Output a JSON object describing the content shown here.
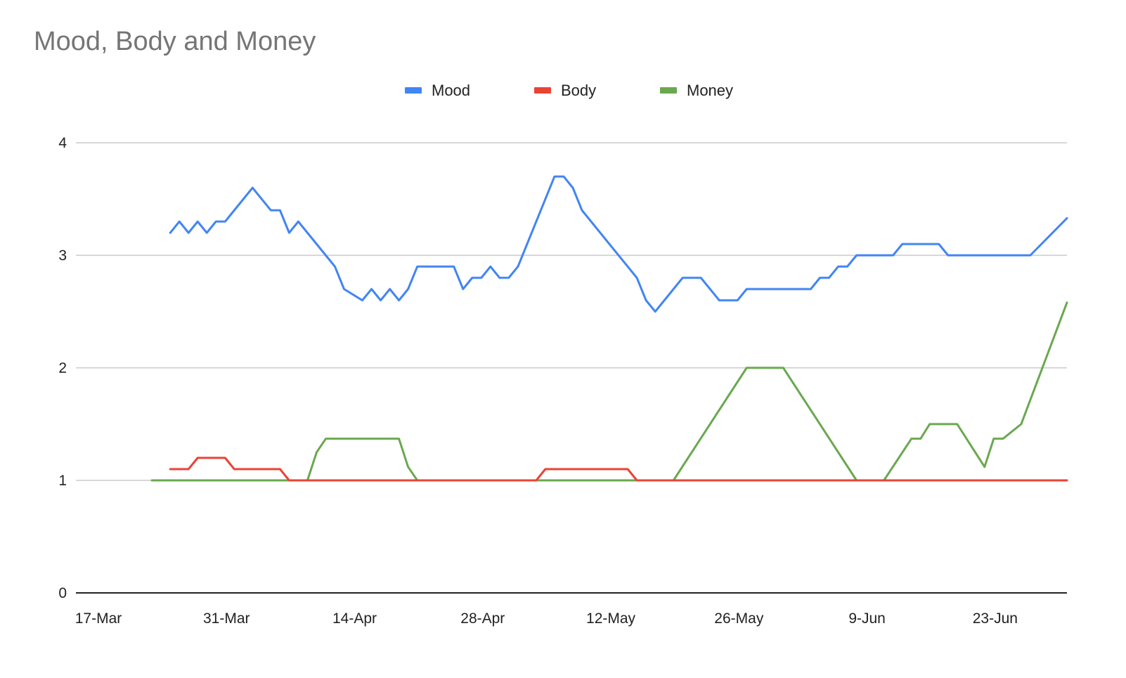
{
  "chart_data": {
    "type": "line",
    "title": "Mood, Body and Money",
    "xlabel": "",
    "ylabel": "",
    "ylim": [
      0,
      4
    ],
    "y_ticks": [
      "0",
      "1",
      "2",
      "3",
      "4"
    ],
    "x_ticks": [
      "17-Mar",
      "31-Mar",
      "14-Apr",
      "28-Apr",
      "12-May",
      "26-May",
      "9-Jun",
      "23-Jun"
    ],
    "x_range": [
      "2020-03-17",
      "2020-07-01"
    ],
    "grid": true,
    "legend_position": "top-center",
    "series": [
      {
        "name": "Mood",
        "color": "#4285f4",
        "points": [
          [
            "2020-03-25",
            3.2
          ],
          [
            "2020-03-26",
            3.3
          ],
          [
            "2020-03-27",
            3.2
          ],
          [
            "2020-03-28",
            3.3
          ],
          [
            "2020-03-29",
            3.2
          ],
          [
            "2020-03-30",
            3.3
          ],
          [
            "2020-03-31",
            3.3
          ],
          [
            "2020-04-03",
            3.6
          ],
          [
            "2020-04-05",
            3.4
          ],
          [
            "2020-04-06",
            3.4
          ],
          [
            "2020-04-07",
            3.2
          ],
          [
            "2020-04-08",
            3.3
          ],
          [
            "2020-04-12",
            2.9
          ],
          [
            "2020-04-13",
            2.7
          ],
          [
            "2020-04-15",
            2.6
          ],
          [
            "2020-04-16",
            2.7
          ],
          [
            "2020-04-17",
            2.6
          ],
          [
            "2020-04-18",
            2.7
          ],
          [
            "2020-04-19",
            2.6
          ],
          [
            "2020-04-20",
            2.7
          ],
          [
            "2020-04-21",
            2.9
          ],
          [
            "2020-04-25",
            2.9
          ],
          [
            "2020-04-26",
            2.7
          ],
          [
            "2020-04-27",
            2.8
          ],
          [
            "2020-04-28",
            2.8
          ],
          [
            "2020-04-29",
            2.9
          ],
          [
            "2020-04-30",
            2.8
          ],
          [
            "2020-05-01",
            2.8
          ],
          [
            "2020-05-02",
            2.9
          ],
          [
            "2020-05-06",
            3.7
          ],
          [
            "2020-05-07",
            3.7
          ],
          [
            "2020-05-08",
            3.6
          ],
          [
            "2020-05-09",
            3.4
          ],
          [
            "2020-05-15",
            2.8
          ],
          [
            "2020-05-16",
            2.6
          ],
          [
            "2020-05-17",
            2.5
          ],
          [
            "2020-05-20",
            2.8
          ],
          [
            "2020-05-22",
            2.8
          ],
          [
            "2020-05-24",
            2.6
          ],
          [
            "2020-05-26",
            2.6
          ],
          [
            "2020-05-27",
            2.7
          ],
          [
            "2020-06-03",
            2.7
          ],
          [
            "2020-06-04",
            2.8
          ],
          [
            "2020-06-05",
            2.8
          ],
          [
            "2020-06-06",
            2.9
          ],
          [
            "2020-06-07",
            2.9
          ],
          [
            "2020-06-08",
            3.0
          ],
          [
            "2020-06-12",
            3.0
          ],
          [
            "2020-06-13",
            3.1
          ],
          [
            "2020-06-17",
            3.1
          ],
          [
            "2020-06-18",
            3.0
          ],
          [
            "2020-06-27",
            3.0
          ],
          [
            "2020-07-01",
            3.33
          ]
        ]
      },
      {
        "name": "Body",
        "color": "#ea4335",
        "points": [
          [
            "2020-03-25",
            1.1
          ],
          [
            "2020-03-27",
            1.1
          ],
          [
            "2020-03-28",
            1.2
          ],
          [
            "2020-03-31",
            1.2
          ],
          [
            "2020-04-01",
            1.1
          ],
          [
            "2020-04-06",
            1.1
          ],
          [
            "2020-04-07",
            1.0
          ],
          [
            "2020-05-04",
            1.0
          ],
          [
            "2020-05-05",
            1.1
          ],
          [
            "2020-05-14",
            1.1
          ],
          [
            "2020-05-15",
            1.0
          ],
          [
            "2020-07-01",
            1.0
          ]
        ]
      },
      {
        "name": "Money",
        "color": "#6aa84f",
        "points": [
          [
            "2020-03-23",
            1.0
          ],
          [
            "2020-04-09",
            1.0
          ],
          [
            "2020-04-10",
            1.25
          ],
          [
            "2020-04-11",
            1.37
          ],
          [
            "2020-04-19",
            1.37
          ],
          [
            "2020-04-20",
            1.12
          ],
          [
            "2020-04-21",
            1.0
          ],
          [
            "2020-05-19",
            1.0
          ],
          [
            "2020-05-27",
            2.0
          ],
          [
            "2020-05-31",
            2.0
          ],
          [
            "2020-06-08",
            1.0
          ],
          [
            "2020-06-11",
            1.0
          ],
          [
            "2020-06-14",
            1.37
          ],
          [
            "2020-06-15",
            1.37
          ],
          [
            "2020-06-16",
            1.5
          ],
          [
            "2020-06-19",
            1.5
          ],
          [
            "2020-06-22",
            1.12
          ],
          [
            "2020-06-23",
            1.37
          ],
          [
            "2020-06-24",
            1.37
          ],
          [
            "2020-06-26",
            1.5
          ],
          [
            "2020-07-01",
            2.58
          ]
        ]
      }
    ]
  }
}
